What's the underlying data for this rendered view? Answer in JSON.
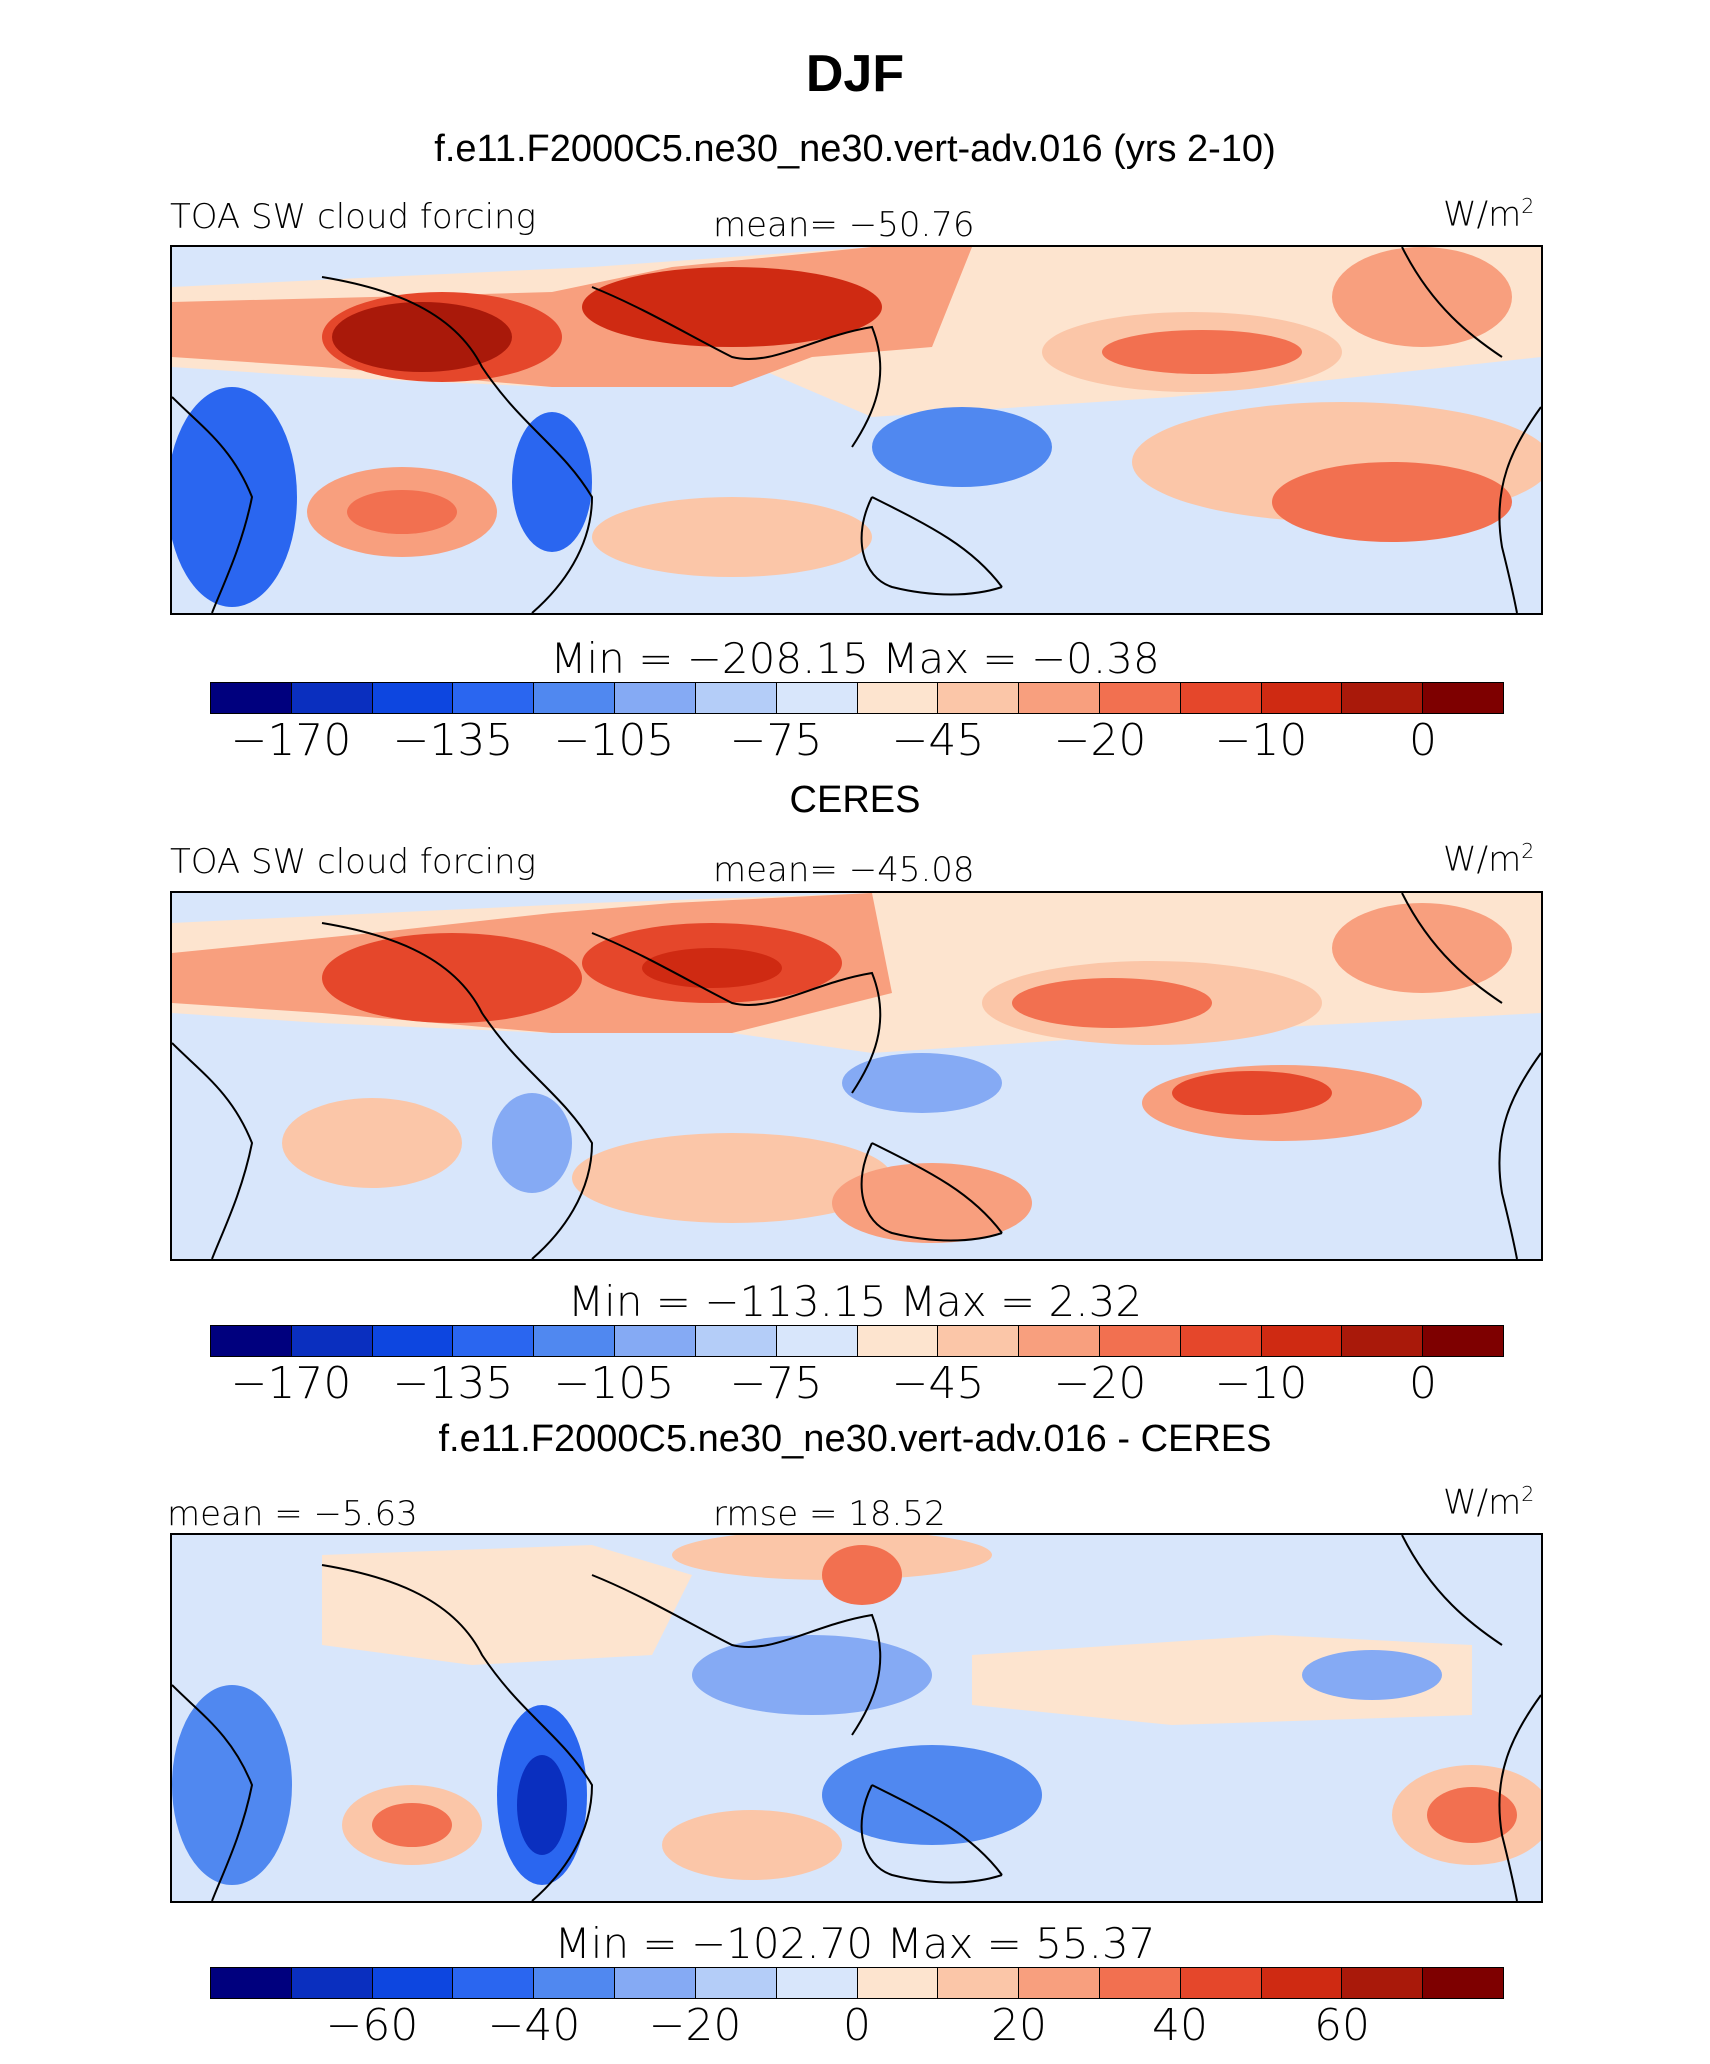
{
  "title": "DJF",
  "panels": [
    {
      "id": "model",
      "subtitle": "f.e11.F2000C5.ne30_ne30.vert-adv.016 (yrs 2-10)",
      "left_label": "TOA SW cloud forcing",
      "center_label": "mean= −50.76",
      "units": "W/m",
      "units_sup": "2",
      "minmax_label": "Min  =  −208.15  Max  =   −0.38",
      "colorbar_ticks": [
        "−170",
        "−135",
        "−105",
        "−75",
        "−45",
        "−20",
        "−10",
        "0"
      ]
    },
    {
      "id": "obs",
      "subtitle": "CERES",
      "left_label": "TOA SW cloud forcing",
      "center_label": "mean= −45.08",
      "units": "W/m",
      "units_sup": "2",
      "minmax_label": "Min  =  −113.15  Max  =     2.32",
      "colorbar_ticks": [
        "−170",
        "−135",
        "−105",
        "−75",
        "−45",
        "−20",
        "−10",
        "0"
      ]
    },
    {
      "id": "diff",
      "subtitle": "f.e11.F2000C5.ne30_ne30.vert-adv.016 - CERES",
      "left_label": "mean =   −5.63",
      "center_label": "rmse =   18.52",
      "units": "W/m",
      "units_sup": "2",
      "minmax_label": "Min  =  −102.70  Max  =   55.37",
      "colorbar_ticks": [
        "−60",
        "−40",
        "−20",
        "0",
        "20",
        "40",
        "60"
      ]
    }
  ],
  "chart_data": [
    {
      "type": "heatmap",
      "title": "f.e11.F2000C5.ne30_ne30.vert-adv.016 (yrs 2-10)",
      "variable": "TOA SW cloud forcing",
      "units": "W/m2",
      "mean": -50.76,
      "min": -208.15,
      "max": -0.38,
      "colorbar_levels": [
        -170,
        -135,
        -105,
        -75,
        -45,
        -20,
        -10,
        0
      ],
      "colorbar_tick_labels": [
        "−170",
        "−135",
        "−105",
        "−75",
        "−45",
        "−20",
        "−10",
        "0"
      ]
    },
    {
      "type": "heatmap",
      "title": "CERES",
      "variable": "TOA SW cloud forcing",
      "units": "W/m2",
      "mean": -45.08,
      "min": -113.15,
      "max": 2.32,
      "colorbar_levels": [
        -170,
        -135,
        -105,
        -75,
        -45,
        -20,
        -10,
        0
      ],
      "colorbar_tick_labels": [
        "−170",
        "−135",
        "−105",
        "−75",
        "−45",
        "−20",
        "−10",
        "0"
      ]
    },
    {
      "type": "heatmap",
      "title": "f.e11.F2000C5.ne30_ne30.vert-adv.016 - CERES",
      "units": "W/m2",
      "mean": -5.63,
      "rmse": 18.52,
      "min": -102.7,
      "max": 55.37,
      "colorbar_levels": [
        -60,
        -40,
        -20,
        0,
        20,
        40,
        60
      ],
      "colorbar_tick_labels": [
        "−60",
        "−40",
        "−20",
        "0",
        "20",
        "40",
        "60"
      ]
    }
  ],
  "palette": [
    "#00007e",
    "#0a2fbf",
    "#0d46e0",
    "#2a66f0",
    "#5088f0",
    "#85aaf4",
    "#b4cdf8",
    "#d8e6fb",
    "#fde4cf",
    "#fbc6a8",
    "#f89f7e",
    "#f27050",
    "#e5472b",
    "#cf2a12",
    "#a9190a",
    "#7e0000"
  ]
}
